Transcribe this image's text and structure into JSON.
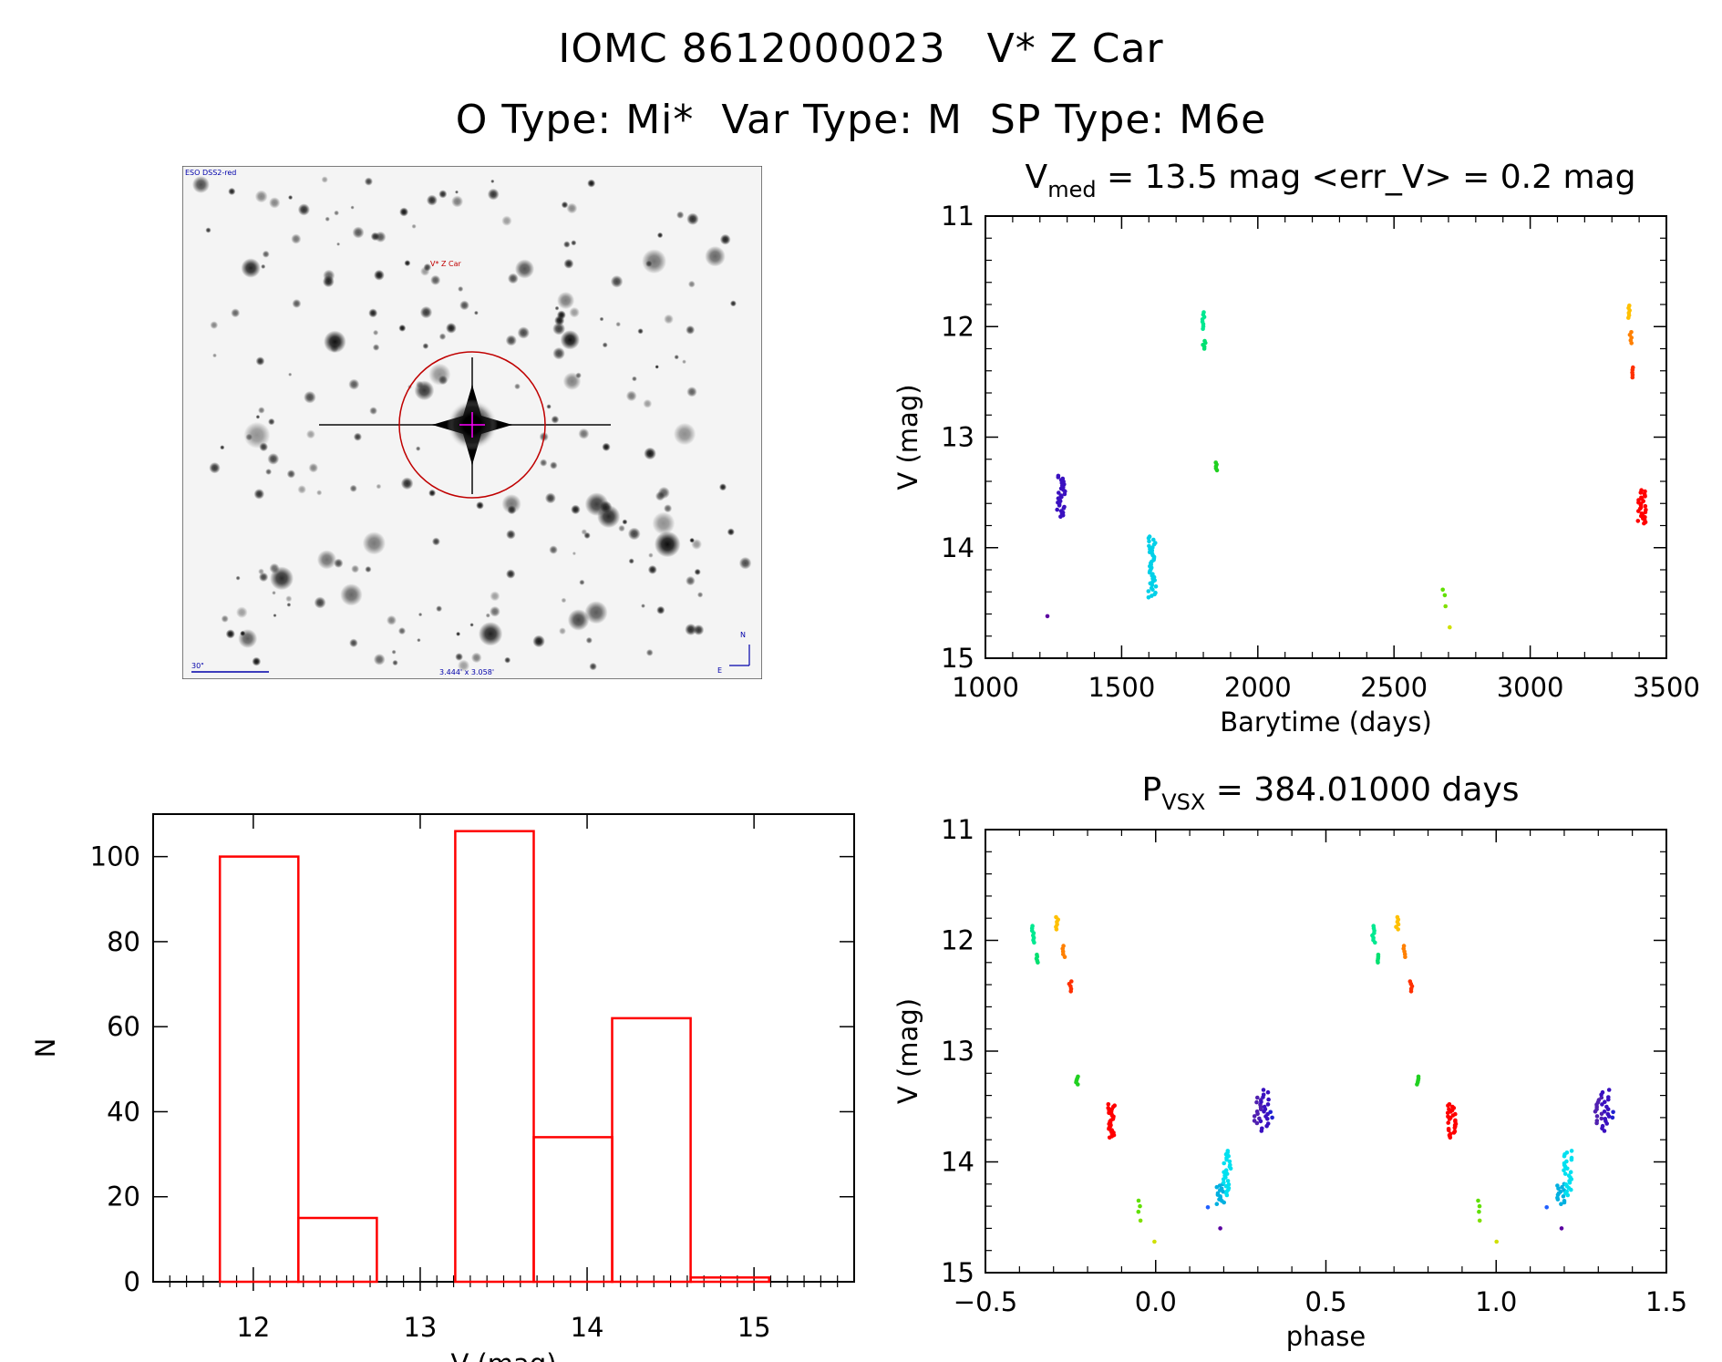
{
  "header": {
    "title_line1": "IOMC 8612000023   V* Z Car",
    "title_line2": "O Type: Mi*  Var Type: M  SP Type: M6e"
  },
  "finder_image": {
    "top_left_label": "ESO DSS2-red",
    "target_label": "V* Z Car",
    "scale_label": "30\"",
    "size_label": "3.444' x 3.058'",
    "north_label": "N",
    "east_label": "E",
    "colors": {
      "circle": "#c00000",
      "scale_bar": "#0000aa",
      "cross": "#ff00ff"
    }
  },
  "chart_data": [
    {
      "id": "lightcurve",
      "type": "scatter",
      "title_main": "V",
      "title_sub": "med",
      "title_rest": " = 13.5 mag <err_V> = 0.2 mag",
      "xlabel": "Barytime (days)",
      "ylabel": "V (mag)",
      "xlim": [
        1000,
        3500
      ],
      "ylim": [
        15,
        11
      ],
      "x_ticks": [
        "1000",
        "1500",
        "2000",
        "2500",
        "3000",
        "3500"
      ],
      "y_ticks": [
        "11",
        "12",
        "13",
        "14",
        "15"
      ],
      "clusters": [
        {
          "x": 1230,
          "ymin": 14.62,
          "ymax": 14.62,
          "n": 1,
          "color": "#5a00a0"
        },
        {
          "x": 1278,
          "ymin": 13.35,
          "ymax": 13.72,
          "n": 30,
          "color": "#3a10c0"
        },
        {
          "x": 1612,
          "ymin": 13.9,
          "ymax": 14.45,
          "n": 40,
          "color": "#00d0e8"
        },
        {
          "x": 1800,
          "ymin": 11.87,
          "ymax": 12.02,
          "n": 8,
          "color": "#00e890"
        },
        {
          "x": 1803,
          "ymin": 12.13,
          "ymax": 12.2,
          "n": 5,
          "color": "#00e070"
        },
        {
          "x": 1847,
          "ymin": 13.23,
          "ymax": 13.3,
          "n": 5,
          "color": "#20d020"
        },
        {
          "x": 2683,
          "ymin": 14.38,
          "ymax": 14.43,
          "n": 2,
          "color": "#60e000"
        },
        {
          "x": 2686,
          "ymin": 14.53,
          "ymax": 14.55,
          "n": 1,
          "color": "#80e000"
        },
        {
          "x": 2700,
          "ymin": 14.72,
          "ymax": 14.72,
          "n": 1,
          "color": "#d0e000"
        },
        {
          "x": 3365,
          "ymin": 11.81,
          "ymax": 11.92,
          "n": 6,
          "color": "#ffc000"
        },
        {
          "x": 3370,
          "ymin": 12.05,
          "ymax": 12.15,
          "n": 5,
          "color": "#ff8000"
        },
        {
          "x": 3376,
          "ymin": 12.37,
          "ymax": 12.46,
          "n": 5,
          "color": "#ff3000"
        },
        {
          "x": 3410,
          "ymin": 13.48,
          "ymax": 13.78,
          "n": 28,
          "color": "#ff0000"
        }
      ]
    },
    {
      "id": "histogram",
      "type": "bar",
      "xlabel": "V (mag)",
      "ylabel": "N",
      "xlim": [
        11.4,
        15.6
      ],
      "ylim": [
        0,
        110
      ],
      "x_ticks": [
        "12",
        "13",
        "14",
        "15"
      ],
      "y_ticks": [
        "0",
        "20",
        "40",
        "60",
        "80",
        "100"
      ],
      "bin_edges": [
        11.8,
        12.27,
        12.74,
        13.21,
        13.68,
        14.15,
        14.62,
        15.09
      ],
      "values": [
        100,
        15,
        0,
        106,
        34,
        62,
        1
      ],
      "color": "#ff0000"
    },
    {
      "id": "phased",
      "type": "scatter",
      "title_main": "P",
      "title_sub": "VSX",
      "title_rest": " = 384.01000 days",
      "xlabel": "phase",
      "ylabel": "V (mag)",
      "xlim": [
        -0.5,
        1.5
      ],
      "ylim": [
        15,
        11
      ],
      "x_ticks": [
        "−0.5",
        "0.0",
        "0.5",
        "1.0",
        "1.5"
      ],
      "y_ticks": [
        "11",
        "12",
        "13",
        "14",
        "15"
      ],
      "clusters": [
        {
          "x": -0.36,
          "ymin": 11.87,
          "ymax": 12.02,
          "n": 8,
          "color": "#00e890"
        },
        {
          "x": -0.35,
          "ymin": 12.13,
          "ymax": 12.2,
          "n": 5,
          "color": "#00e070"
        },
        {
          "x": -0.29,
          "ymin": 11.79,
          "ymax": 11.9,
          "n": 6,
          "color": "#ffc000"
        },
        {
          "x": -0.27,
          "ymin": 12.05,
          "ymax": 12.15,
          "n": 5,
          "color": "#ff8000"
        },
        {
          "x": -0.25,
          "ymin": 12.37,
          "ymax": 12.46,
          "n": 5,
          "color": "#ff3000"
        },
        {
          "x": -0.23,
          "ymin": 13.23,
          "ymax": 13.3,
          "n": 5,
          "color": "#20d020"
        },
        {
          "x": -0.13,
          "ymin": 13.48,
          "ymax": 13.78,
          "n": 28,
          "color": "#ff0000"
        },
        {
          "x": -0.05,
          "ymin": 14.35,
          "ymax": 14.45,
          "n": 3,
          "color": "#60e000"
        },
        {
          "x": -0.045,
          "ymin": 14.53,
          "ymax": 14.55,
          "n": 1,
          "color": "#80e000"
        },
        {
          "x": 0.0,
          "ymin": 14.72,
          "ymax": 14.72,
          "n": 1,
          "color": "#d0e000"
        },
        {
          "x": 0.15,
          "ymin": 14.41,
          "ymax": 14.41,
          "n": 1,
          "color": "#2060ff"
        },
        {
          "x": 0.19,
          "ymin": 14.2,
          "ymax": 14.38,
          "n": 14,
          "color": "#00b0e0"
        },
        {
          "x": 0.21,
          "ymin": 13.9,
          "ymax": 14.3,
          "n": 26,
          "color": "#00e0f0"
        },
        {
          "x": 0.19,
          "ymin": 14.6,
          "ymax": 14.6,
          "n": 1,
          "color": "#5a00a0"
        },
        {
          "x": 0.3,
          "ymin": 13.42,
          "ymax": 13.65,
          "n": 12,
          "color": "#5020b0"
        },
        {
          "x": 0.32,
          "ymin": 13.35,
          "ymax": 13.72,
          "n": 18,
          "color": "#3a10c0"
        },
        {
          "x": 0.34,
          "ymin": 13.55,
          "ymax": 13.6,
          "n": 2,
          "color": "#2020d0"
        },
        {
          "x": 0.64,
          "ymin": 11.87,
          "ymax": 12.02,
          "n": 8,
          "color": "#00e890"
        },
        {
          "x": 0.65,
          "ymin": 12.13,
          "ymax": 12.2,
          "n": 5,
          "color": "#00e070"
        },
        {
          "x": 0.71,
          "ymin": 11.79,
          "ymax": 11.9,
          "n": 6,
          "color": "#ffc000"
        },
        {
          "x": 0.73,
          "ymin": 12.05,
          "ymax": 12.15,
          "n": 5,
          "color": "#ff8000"
        },
        {
          "x": 0.75,
          "ymin": 12.37,
          "ymax": 12.46,
          "n": 5,
          "color": "#ff3000"
        },
        {
          "x": 0.77,
          "ymin": 13.23,
          "ymax": 13.3,
          "n": 5,
          "color": "#20d020"
        },
        {
          "x": 0.87,
          "ymin": 13.48,
          "ymax": 13.78,
          "n": 28,
          "color": "#ff0000"
        },
        {
          "x": 0.95,
          "ymin": 14.35,
          "ymax": 14.45,
          "n": 3,
          "color": "#60e000"
        },
        {
          "x": 0.955,
          "ymin": 14.53,
          "ymax": 14.55,
          "n": 1,
          "color": "#80e000"
        },
        {
          "x": 1.0,
          "ymin": 14.72,
          "ymax": 14.72,
          "n": 1,
          "color": "#d0e000"
        },
        {
          "x": 1.15,
          "ymin": 14.41,
          "ymax": 14.41,
          "n": 1,
          "color": "#2060ff"
        },
        {
          "x": 1.19,
          "ymin": 14.2,
          "ymax": 14.38,
          "n": 14,
          "color": "#00b0e0"
        },
        {
          "x": 1.21,
          "ymin": 13.9,
          "ymax": 14.3,
          "n": 26,
          "color": "#00e0f0"
        },
        {
          "x": 1.19,
          "ymin": 14.6,
          "ymax": 14.6,
          "n": 1,
          "color": "#5a00a0"
        },
        {
          "x": 1.3,
          "ymin": 13.42,
          "ymax": 13.65,
          "n": 12,
          "color": "#5020b0"
        },
        {
          "x": 1.32,
          "ymin": 13.35,
          "ymax": 13.72,
          "n": 18,
          "color": "#3a10c0"
        },
        {
          "x": 1.34,
          "ymin": 13.55,
          "ymax": 13.6,
          "n": 2,
          "color": "#2020d0"
        }
      ]
    }
  ]
}
